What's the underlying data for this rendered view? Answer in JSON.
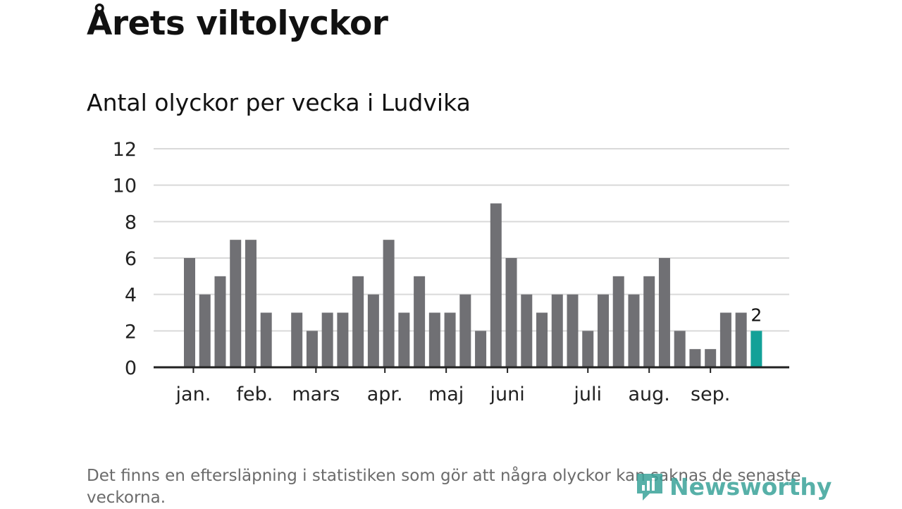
{
  "header": {
    "title": "Årets viltolyckor",
    "subtitle": "Antal olyckor per vecka i Ludvika"
  },
  "footnote": "Det finns en eftersläpning i statistiken som gör att några olyckor kan saknas de senaste veckorna.",
  "brand": {
    "name": "Newsworthy",
    "icon": "newsworthy-logo-icon",
    "color": "#3aa39a"
  },
  "chart_data": {
    "type": "bar",
    "title": "Antal olyckor per vecka i Ludvika",
    "xlabel": "",
    "ylabel": "",
    "ylim": [
      0,
      12
    ],
    "yticks": [
      0,
      2,
      4,
      6,
      8,
      10,
      12
    ],
    "grid": true,
    "values": [
      6,
      4,
      5,
      7,
      7,
      3,
      0,
      3,
      2,
      3,
      3,
      5,
      4,
      7,
      3,
      5,
      3,
      3,
      4,
      2,
      9,
      6,
      4,
      3,
      4,
      4,
      2,
      4,
      5,
      4,
      5,
      6,
      2,
      1,
      1,
      3,
      3,
      2
    ],
    "highlight_index": 37,
    "highlight_label": "2",
    "month_labels": [
      {
        "label": "jan.",
        "week_index": 0.25
      },
      {
        "label": "feb.",
        "week_index": 4.25
      },
      {
        "label": "mars",
        "week_index": 8.25
      },
      {
        "label": "apr.",
        "week_index": 12.75
      },
      {
        "label": "maj",
        "week_index": 16.75
      },
      {
        "label": "juni",
        "week_index": 20.75
      },
      {
        "label": "juli",
        "week_index": 26
      },
      {
        "label": "aug.",
        "week_index": 30
      },
      {
        "label": "sep.",
        "week_index": 34
      }
    ],
    "colors": {
      "bar": "#707074",
      "highlight": "#13a198",
      "grid": "#d9d9d9",
      "axis": "#222222"
    }
  }
}
